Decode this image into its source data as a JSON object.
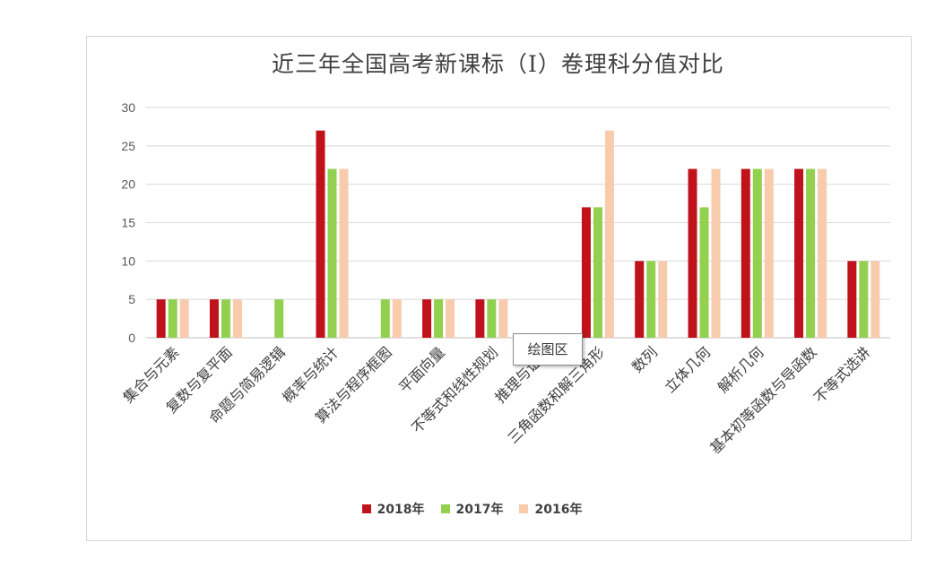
{
  "chart_data": {
    "type": "bar",
    "title": "近三年全国高考新课标（I）卷理科分值对比",
    "categories": [
      "集合与元素",
      "复数与复平面",
      "命题与简易逻辑",
      "概率与统计",
      "算法与程序框图",
      "平面向量",
      "不等式和线性规划",
      "推理与证明",
      "三角函数和解三角形",
      "数列",
      "立体几何",
      "解析几何",
      "基本初等函数与导函数",
      "不等式选讲"
    ],
    "series": [
      {
        "name": "2018年",
        "color": "#c0121a",
        "values": [
          5,
          5,
          0,
          27,
          0,
          5,
          5,
          0,
          17,
          10,
          22,
          22,
          22,
          10
        ]
      },
      {
        "name": "2017年",
        "color": "#92d050",
        "values": [
          5,
          5,
          5,
          22,
          5,
          5,
          5,
          0,
          17,
          10,
          17,
          22,
          22,
          10
        ]
      },
      {
        "name": "2016年",
        "color": "#f8cbad",
        "values": [
          5,
          5,
          0,
          22,
          5,
          5,
          5,
          0,
          27,
          10,
          22,
          22,
          22,
          10
        ]
      }
    ],
    "yticks": [
      0,
      5,
      10,
      15,
      20,
      25,
      30
    ],
    "ylim": [
      0,
      30
    ],
    "grid": true,
    "legend_position": "bottom"
  },
  "tooltip_text": "绘图区"
}
